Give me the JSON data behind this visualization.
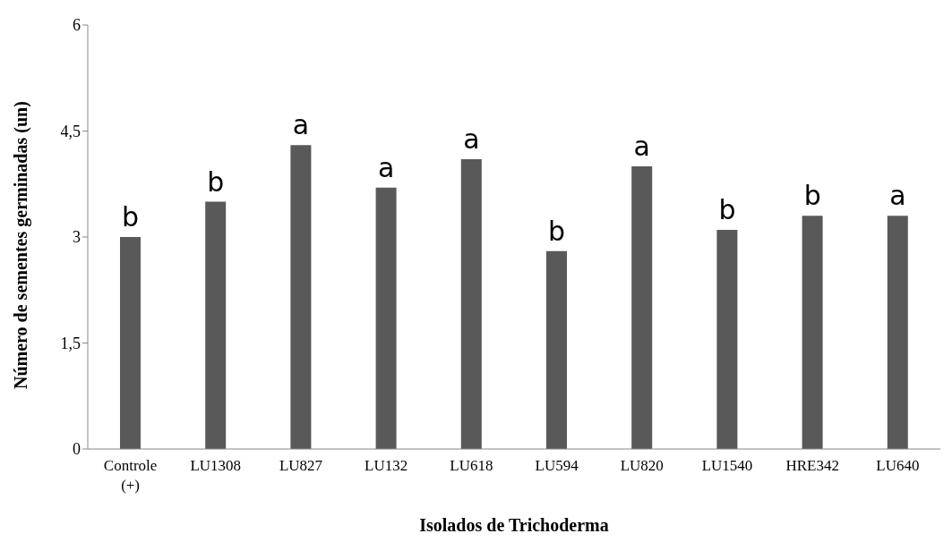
{
  "chart_data": {
    "type": "bar",
    "xlabel": "Isolados de Trichoderma",
    "ylabel": "Número de sementes germinadas (un)",
    "categories": [
      "Controle (+)",
      "LU1308",
      "LU827",
      "LU132",
      "LU618",
      "LU594",
      "LU820",
      "LU1540",
      "HRE342",
      "LU640"
    ],
    "values": [
      3.0,
      3.5,
      4.3,
      3.7,
      4.1,
      2.8,
      4.0,
      3.1,
      3.3,
      3.3
    ],
    "color": "#595959",
    "ylim": [
      0,
      6
    ],
    "yticks": [
      0,
      {
        "value": 1.5,
        "label": "1,5"
      },
      3,
      {
        "value": 4.5,
        "label": "4,5"
      },
      6
    ],
    "grid": false,
    "annotations": [
      {
        "text": "b",
        "x": "Controle (+)",
        "y": 3.0
      },
      {
        "text": "b",
        "x": "LU1308",
        "y": 3.5
      },
      {
        "text": "a",
        "x": "LU827",
        "y": 4.3
      },
      {
        "text": "a",
        "x": "LU132",
        "y": 3.7
      },
      {
        "text": "a",
        "x": "LU618",
        "y": 4.1
      },
      {
        "text": "b",
        "x": "LU594",
        "y": 2.8
      },
      {
        "text": "a",
        "x": "LU820",
        "y": 4.0
      },
      {
        "text": "b",
        "x": "LU1540",
        "y": 3.1
      },
      {
        "text": "b",
        "x": "HRE342",
        "y": 3.3
      },
      {
        "text": "a",
        "x": "LU640",
        "y": 3.3
      }
    ]
  }
}
